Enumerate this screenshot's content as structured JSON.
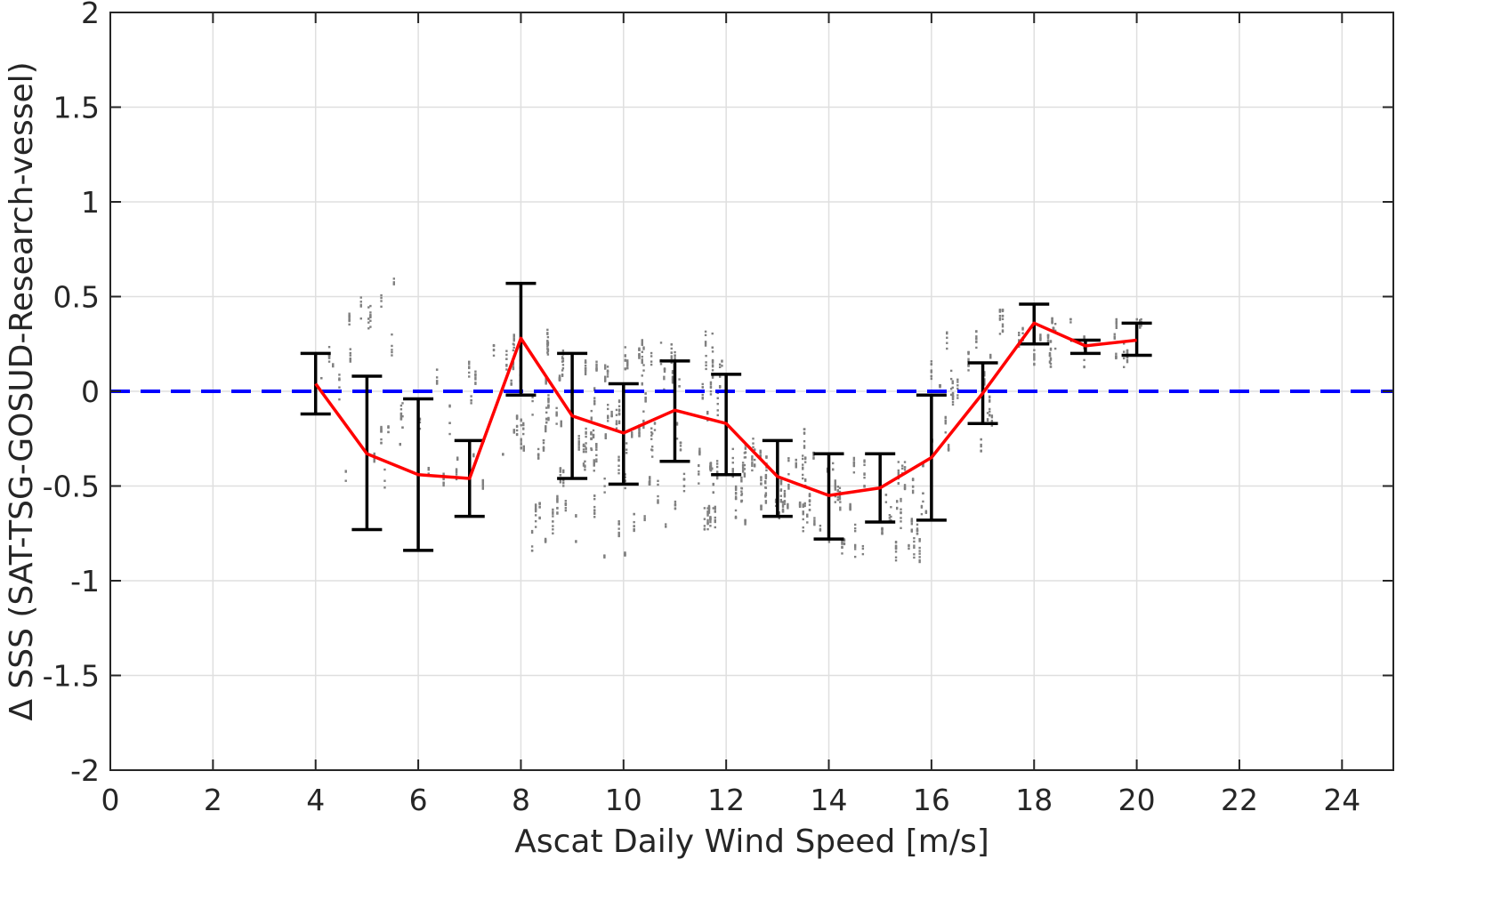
{
  "chart_data": {
    "type": "line",
    "xlabel": "Ascat Daily Wind Speed [m/s]",
    "ylabel": "Δ SSS (SAT-TSG-GOSUD-Research-vessel)",
    "xlim": [
      0,
      25
    ],
    "ylim": [
      -2,
      2
    ],
    "x_ticks": [
      "0",
      "2",
      "4",
      "6",
      "8",
      "10",
      "12",
      "14",
      "16",
      "18",
      "20",
      "22",
      "24"
    ],
    "y_ticks": [
      "-2",
      "-1.5",
      "-1",
      "-0.5",
      "0",
      "0.5",
      "1",
      "1.5",
      "2"
    ],
    "grid": true,
    "reference_line": {
      "y": 0,
      "style": "dashed",
      "color": "#0000ff"
    },
    "colors": {
      "mean_line": "#ff0000",
      "error_bars": "#000000",
      "scatter": "#808080"
    },
    "series": [
      {
        "x": [
          4,
          5,
          6,
          7,
          8,
          9,
          10,
          11,
          12,
          13,
          14,
          15,
          16,
          17,
          18,
          19,
          20
        ],
        "y": [
          0.04,
          -0.33,
          -0.44,
          -0.46,
          0.28,
          -0.13,
          -0.22,
          -0.1,
          -0.17,
          -0.45,
          -0.55,
          -0.51,
          -0.35,
          -0.01,
          0.36,
          0.24,
          0.27
        ],
        "error_low": [
          -0.12,
          -0.73,
          -0.84,
          -0.66,
          -0.02,
          -0.46,
          -0.49,
          -0.37,
          -0.44,
          -0.66,
          -0.78,
          -0.69,
          -0.68,
          -0.17,
          0.25,
          0.2,
          0.19
        ],
        "error_high": [
          0.2,
          0.08,
          -0.04,
          -0.26,
          0.57,
          0.2,
          0.04,
          0.16,
          0.09,
          -0.26,
          -0.33,
          -0.33,
          -0.02,
          0.15,
          0.46,
          0.27,
          0.36
        ]
      }
    ],
    "scatter_clusters": [
      {
        "x_range": [
          4.1,
          5.9
        ],
        "y_range": [
          -0.65,
          0.72
        ],
        "n": 160
      },
      {
        "x_range": [
          6.0,
          7.0
        ],
        "y_range": [
          -0.55,
          0.38
        ],
        "n": 60
      },
      {
        "x_range": [
          7.0,
          8.0
        ],
        "y_range": [
          -0.55,
          0.3
        ],
        "n": 70
      },
      {
        "x_range": [
          7.8,
          10.3
        ],
        "y_range": [
          -0.88,
          0.4
        ],
        "n": 520
      },
      {
        "x_range": [
          10.3,
          12.3
        ],
        "y_range": [
          -0.75,
          0.42
        ],
        "n": 420
      },
      {
        "x_range": [
          12.3,
          14.0
        ],
        "y_range": [
          -0.8,
          -0.2
        ],
        "n": 300
      },
      {
        "x_range": [
          14.0,
          15.9
        ],
        "y_range": [
          -0.93,
          -0.3
        ],
        "n": 260
      },
      {
        "x_range": [
          15.9,
          17.3
        ],
        "y_range": [
          -0.4,
          0.35
        ],
        "n": 140
      },
      {
        "x_range": [
          17.3,
          18.4
        ],
        "y_range": [
          0.1,
          0.43
        ],
        "n": 90
      },
      {
        "x_range": [
          18.4,
          20.5
        ],
        "y_range": [
          0.1,
          0.38
        ],
        "n": 90
      }
    ]
  }
}
